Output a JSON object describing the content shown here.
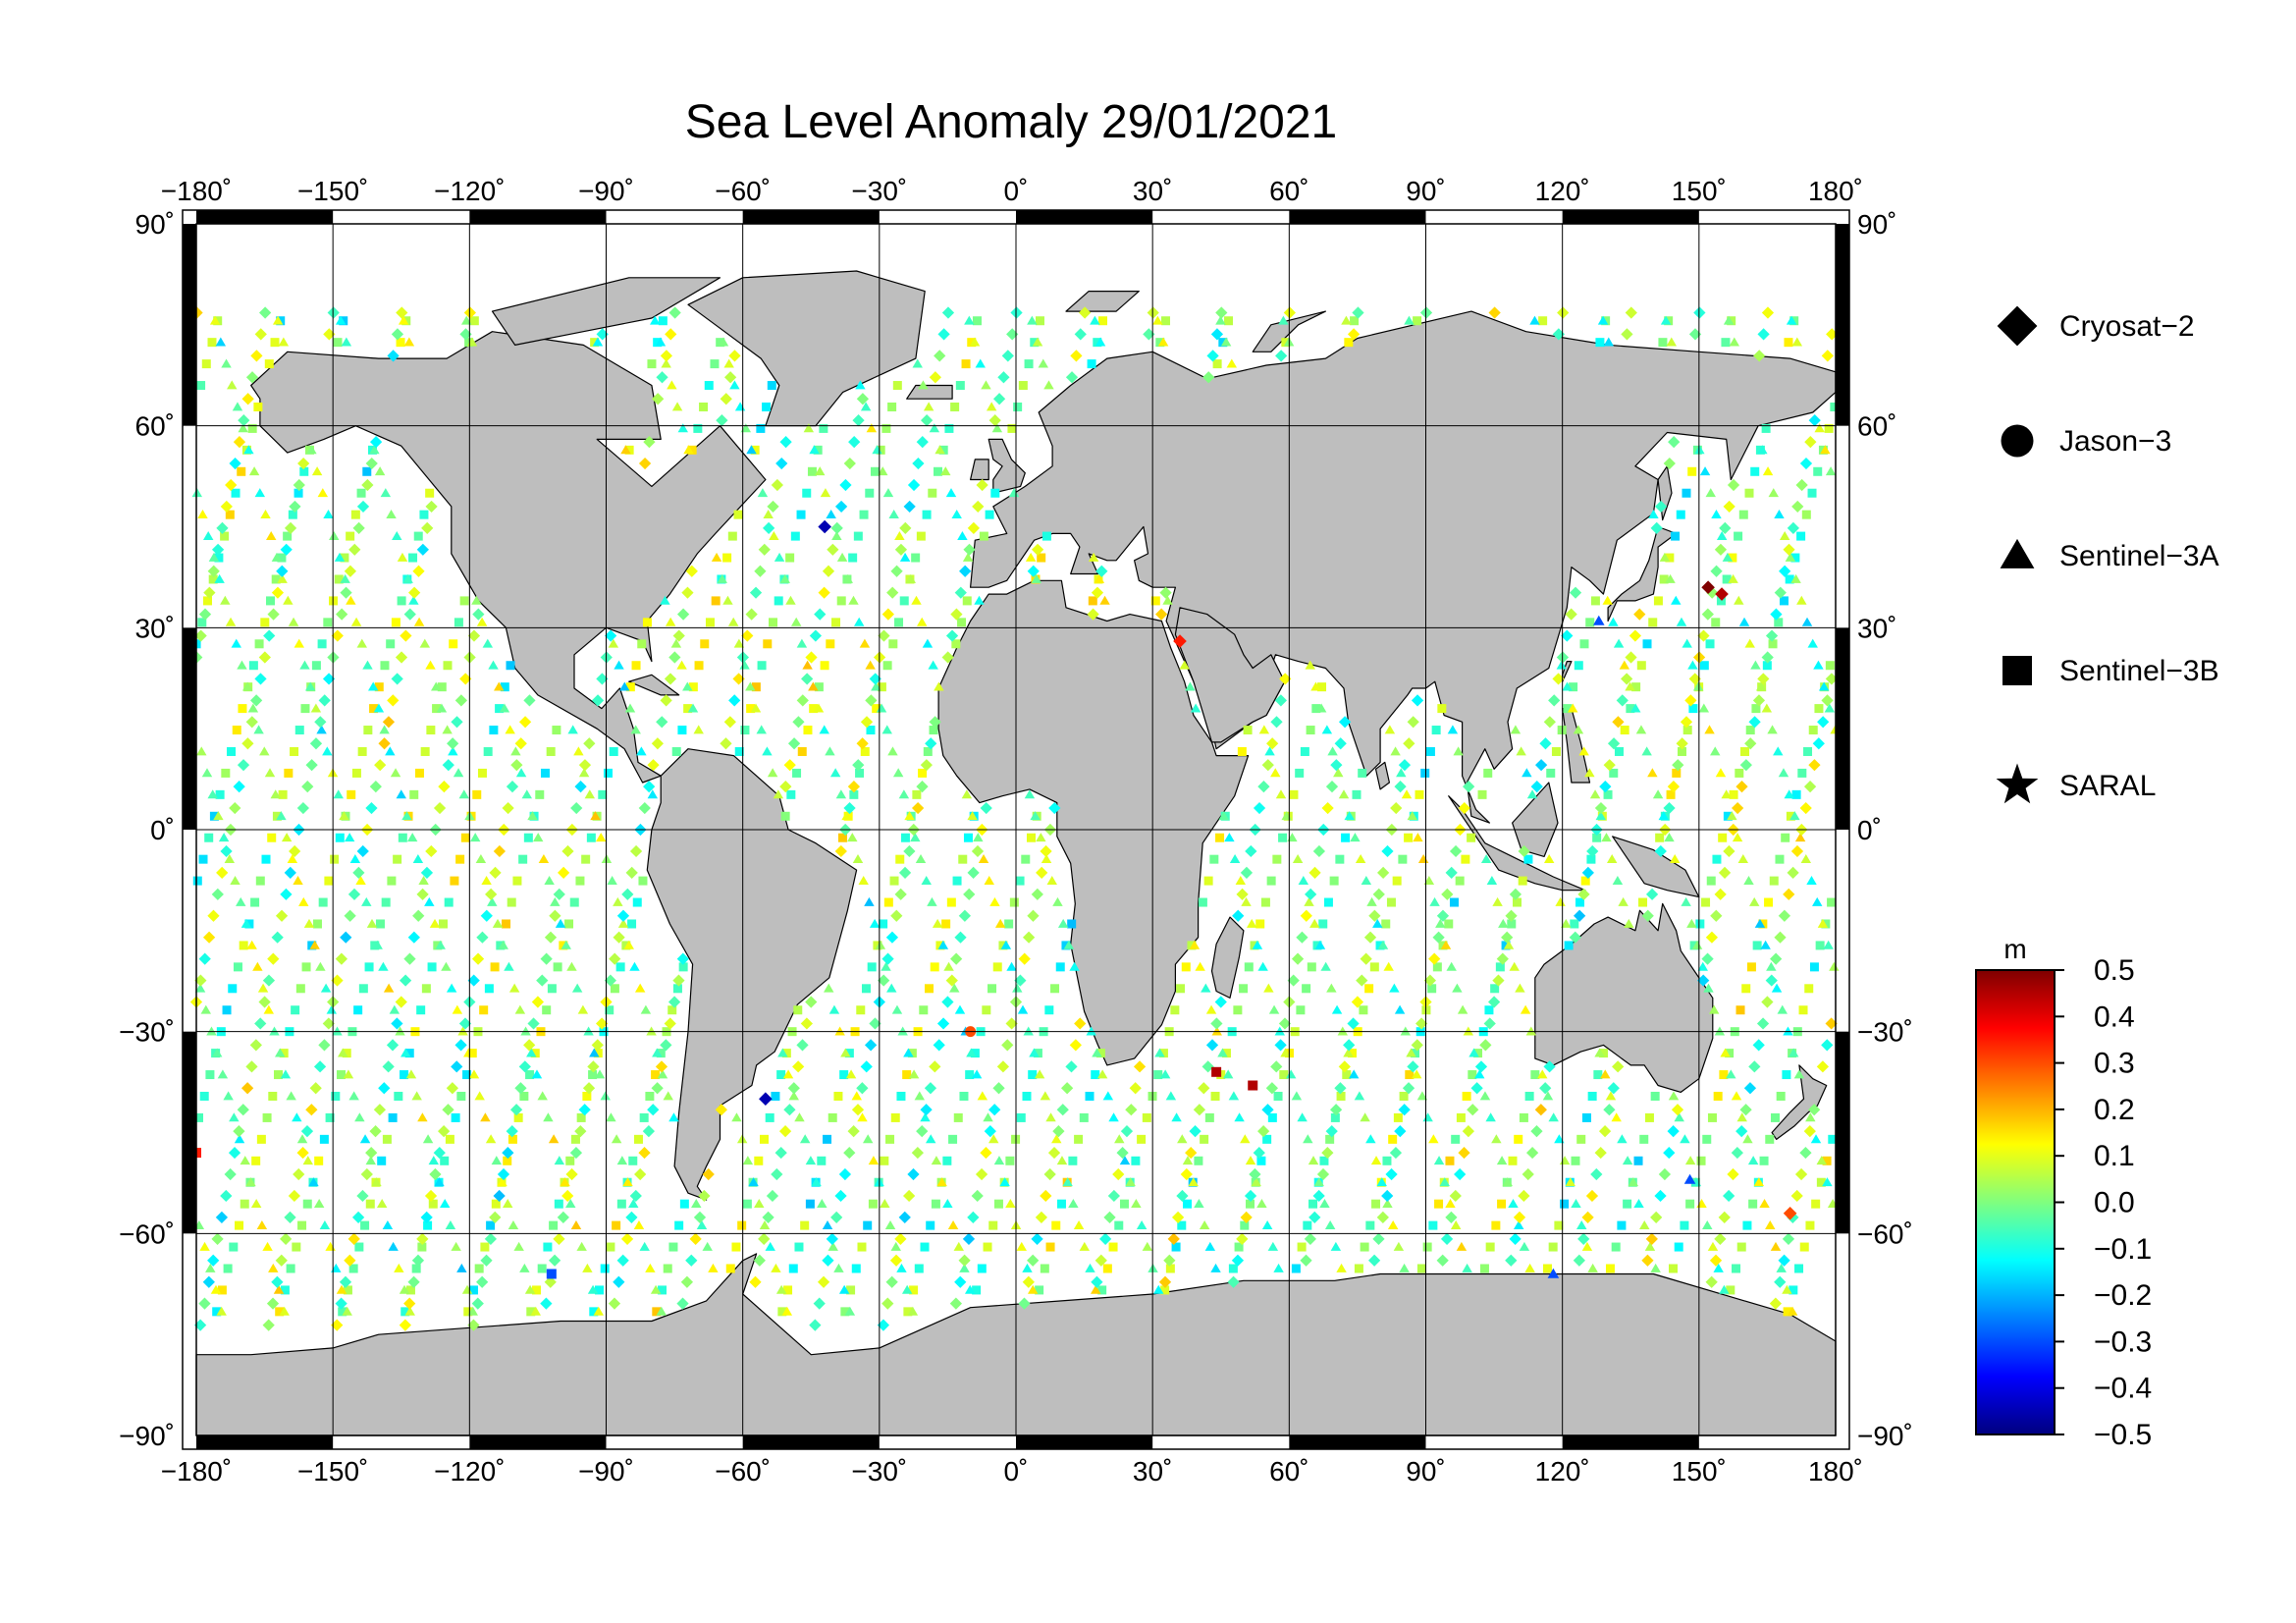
{
  "title": "Sea Level Anomaly 29/01/2021",
  "axes": {
    "lon_ticks": [
      -180,
      -150,
      -120,
      -90,
      -60,
      -30,
      0,
      30,
      60,
      90,
      120,
      150,
      180
    ],
    "lat_ticks": [
      90,
      60,
      30,
      0,
      -30,
      -60,
      -90
    ],
    "lon_labels": [
      "−180˚",
      "−150˚",
      "−120˚",
      "−90˚",
      "−60˚",
      "−30˚",
      "0˚",
      "30˚",
      "60˚",
      "90˚",
      "120˚",
      "150˚",
      "180˚"
    ],
    "lat_labels": [
      "90˚",
      "60˚",
      "30˚",
      "0˚",
      "−30˚",
      "−60˚",
      "−90˚"
    ],
    "lon_range": [
      -180,
      180
    ],
    "lat_range": [
      -90,
      90
    ]
  },
  "legend": [
    {
      "label": "Cryosat−2",
      "symbol": "diamond"
    },
    {
      "label": "Jason−3",
      "symbol": "circle"
    },
    {
      "label": "Sentinel−3A",
      "symbol": "triangle"
    },
    {
      "label": "Sentinel−3B",
      "symbol": "square"
    },
    {
      "label": "SARAL",
      "symbol": "star"
    }
  ],
  "colorbar": {
    "unit": "m",
    "min": -0.5,
    "max": 0.5,
    "tick_labels": [
      "0.5",
      "0.4",
      "0.3",
      "0.2",
      "0.1",
      "0.0",
      "−0.1",
      "−0.2",
      "−0.3",
      "−0.4",
      "−0.5"
    ],
    "colormap": [
      "#00007f",
      "#0000ff",
      "#007fff",
      "#00ffff",
      "#7fff7f",
      "#ffff00",
      "#ff7f00",
      "#ff0000",
      "#7f0000"
    ]
  },
  "colors": {
    "land": "#bebebe",
    "ocean": "#ffffff",
    "grid": "#000000"
  },
  "tracks": [
    {
      "symbol": "square",
      "lon0": -178,
      "count": 26,
      "spacing": 13.8,
      "lat_max": 78,
      "slope": 2.6
    },
    {
      "symbol": "triangle",
      "lon0": -172,
      "count": 26,
      "spacing": 13.8,
      "lat_max": 78,
      "slope": -2.6
    },
    {
      "symbol": "diamond",
      "lon0": -166,
      "count": 24,
      "spacing": 15.0,
      "lat_max": 80,
      "slope": 3.4
    }
  ],
  "extremes": [
    {
      "lon": 152,
      "lat": 36,
      "value": 0.5,
      "symbol": "diamond"
    },
    {
      "lon": 155,
      "lat": 35,
      "value": 0.45,
      "symbol": "diamond"
    },
    {
      "lon": 52,
      "lat": -38,
      "value": 0.45,
      "symbol": "square"
    },
    {
      "lon": 44,
      "lat": -36,
      "value": 0.45,
      "symbol": "square"
    },
    {
      "lon": -55,
      "lat": -40,
      "value": -0.45,
      "symbol": "diamond"
    },
    {
      "lon": -42,
      "lat": 45,
      "value": -0.45,
      "symbol": "diamond"
    },
    {
      "lon": 118,
      "lat": -66,
      "value": -0.3,
      "symbol": "triangle"
    },
    {
      "lon": -102,
      "lat": -66,
      "value": -0.3,
      "symbol": "square"
    },
    {
      "lon": 148,
      "lat": -52,
      "value": -0.3,
      "symbol": "triangle"
    },
    {
      "lon": 128,
      "lat": 31,
      "value": -0.3,
      "symbol": "triangle"
    },
    {
      "lon": -10,
      "lat": -30,
      "value": 0.3,
      "symbol": "circle"
    },
    {
      "lon": 36,
      "lat": 28,
      "value": 0.35,
      "symbol": "diamond"
    },
    {
      "lon": -180,
      "lat": -48,
      "value": 0.35,
      "symbol": "square"
    },
    {
      "lon": 170,
      "lat": -57,
      "value": 0.3,
      "symbol": "diamond"
    }
  ]
}
